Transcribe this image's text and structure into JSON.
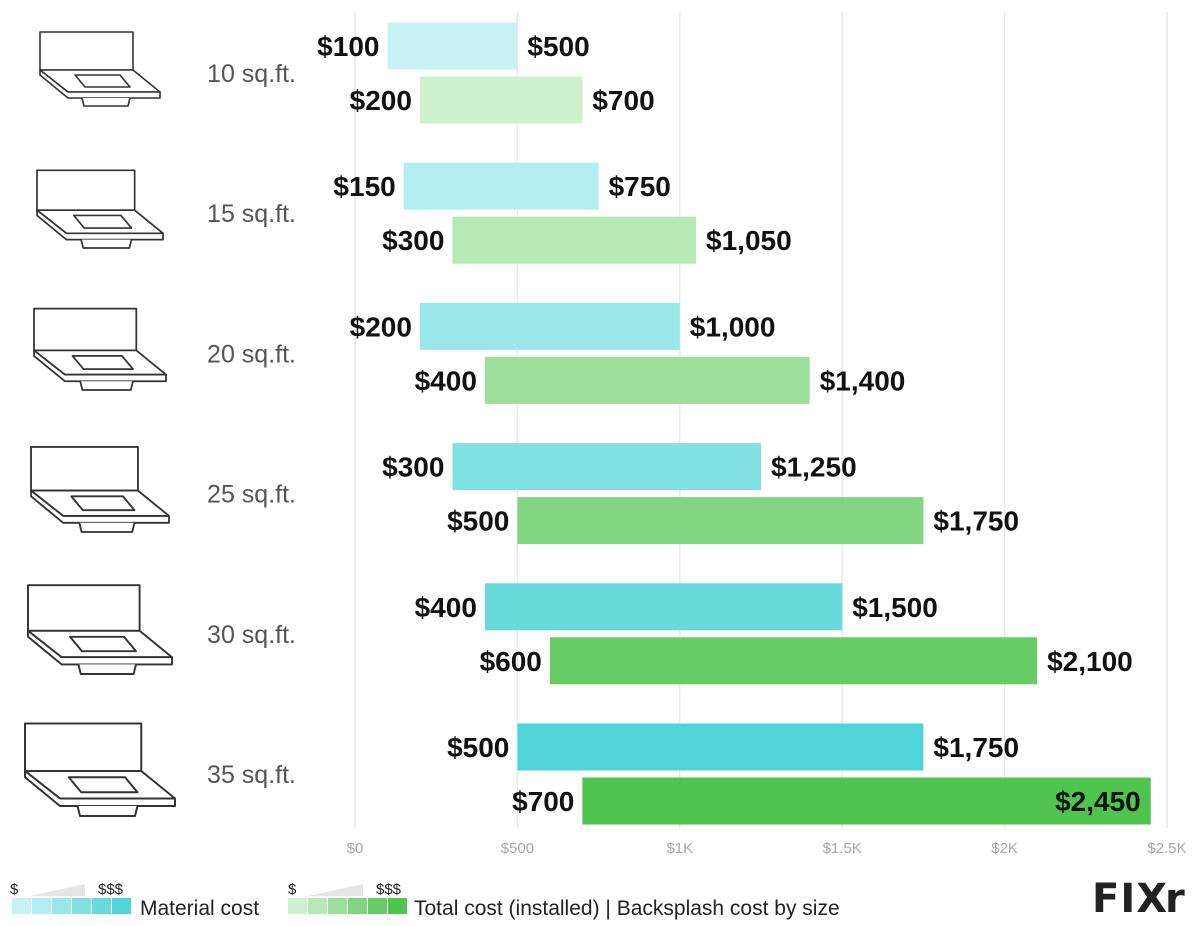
{
  "chart_data": {
    "type": "bar",
    "orientation": "horizontal-range",
    "title": "",
    "xlabel": "",
    "ylabel": "",
    "xlim": [
      0,
      2500
    ],
    "x_ticks": [
      {
        "value": 0,
        "label": "$0"
      },
      {
        "value": 500,
        "label": "$500"
      },
      {
        "value": 1000,
        "label": "$1K"
      },
      {
        "value": 1500,
        "label": "$1.5K"
      },
      {
        "value": 2000,
        "label": "$2K"
      },
      {
        "value": 2500,
        "label": "$2.5K"
      }
    ],
    "grid": true,
    "categories": [
      "10 sq.ft.",
      "15 sq.ft.",
      "20 sq.ft.",
      "25 sq.ft.",
      "30 sq.ft.",
      "35 sq.ft."
    ],
    "icon": "vanity-countertop-with-backsplash-icon",
    "series": [
      {
        "name": "Material cost",
        "colors": [
          "#c8f1f3",
          "#b2eef0",
          "#9ae7e9",
          "#80e0e2",
          "#69dadc",
          "#4fd5d8"
        ],
        "ranges": [
          [
            100,
            500
          ],
          [
            150,
            750
          ],
          [
            200,
            1000
          ],
          [
            300,
            1250
          ],
          [
            400,
            1500
          ],
          [
            500,
            1750
          ]
        ],
        "labels": [
          [
            "$100",
            "$500"
          ],
          [
            "$150",
            "$750"
          ],
          [
            "$200",
            "$1,000"
          ],
          [
            "$300",
            "$1,250"
          ],
          [
            "$400",
            "$1,500"
          ],
          [
            "$500",
            "$1,750"
          ]
        ]
      },
      {
        "name": "Total cost (installed) | Backsplash cost by size",
        "colors": [
          "#cdf0cd",
          "#b6e9b4",
          "#9cdf9a",
          "#82d580",
          "#67cc66",
          "#4fc44e"
        ],
        "ranges": [
          [
            200,
            700
          ],
          [
            300,
            1050
          ],
          [
            400,
            1400
          ],
          [
            500,
            1750
          ],
          [
            600,
            2100
          ],
          [
            700,
            2450
          ]
        ],
        "labels": [
          [
            "$200",
            "$700"
          ],
          [
            "$300",
            "$1,050"
          ],
          [
            "$400",
            "$1,400"
          ],
          [
            "$500",
            "$1,750"
          ],
          [
            "$600",
            "$2,100"
          ],
          [
            "$700",
            "$2,450"
          ]
        ]
      }
    ],
    "legend": {
      "placement": "bottom-left",
      "scale_low": "$",
      "scale_high": "$$$",
      "items": [
        {
          "label": "Material cost",
          "swatches": [
            "#c8f1f3",
            "#b2eef0",
            "#9ae7e9",
            "#80e0e2",
            "#69dadc",
            "#4fd5d8"
          ]
        },
        {
          "label": "Total cost (installed) | Backsplash cost by size",
          "swatches": [
            "#cdf0cd",
            "#b6e9b4",
            "#9cdf9a",
            "#82d580",
            "#67cc66",
            "#4fc44e"
          ]
        }
      ]
    }
  },
  "brand": {
    "text_main": "FIX",
    "text_accent": "r",
    "accent_color": "#4fc44e"
  }
}
